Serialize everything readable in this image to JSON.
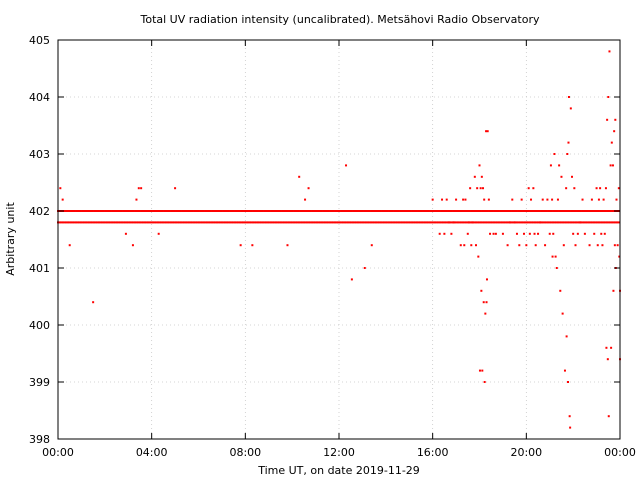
{
  "chart_data": {
    "type": "scatter",
    "title": "Total UV radiation intensity (uncalibrated). Metsähovi Radio Observatory",
    "xlabel": "Time UT, on date 2019-11-29",
    "ylabel": "Arbitrary unit",
    "xlim": [
      0,
      24
    ],
    "ylim": [
      398,
      405
    ],
    "x_ticks": [
      {
        "value": 0,
        "label": "00:00"
      },
      {
        "value": 4,
        "label": "04:00"
      },
      {
        "value": 8,
        "label": "08:00"
      },
      {
        "value": 12,
        "label": "12:00"
      },
      {
        "value": 16,
        "label": "16:00"
      },
      {
        "value": 20,
        "label": "20:00"
      },
      {
        "value": 24,
        "label": "00:00"
      }
    ],
    "y_ticks": [
      398,
      399,
      400,
      401,
      402,
      403,
      404,
      405
    ],
    "grid": true,
    "marker_color": "#ff0000",
    "series": [
      {
        "name": "",
        "points": [
          [
            0.1,
            402.4
          ],
          [
            0.2,
            402.2
          ],
          [
            0.5,
            401.4
          ],
          [
            1.5,
            400.4
          ],
          [
            2.9,
            401.6
          ],
          [
            3.2,
            401.4
          ],
          [
            3.35,
            402.2
          ],
          [
            3.45,
            402.4
          ],
          [
            3.55,
            402.4
          ],
          [
            4.3,
            401.6
          ],
          [
            5.0,
            402.4
          ],
          [
            7.8,
            401.4
          ],
          [
            8.3,
            401.4
          ],
          [
            9.8,
            401.4
          ],
          [
            10.3,
            402.6
          ],
          [
            10.55,
            402.2
          ],
          [
            10.7,
            402.4
          ],
          [
            12.3,
            402.8
          ],
          [
            12.55,
            400.8
          ],
          [
            13.1,
            401.0
          ],
          [
            13.4,
            401.4
          ],
          [
            16.0,
            402.2
          ],
          [
            16.3,
            401.6
          ],
          [
            16.4,
            402.2
          ],
          [
            16.5,
            401.6
          ],
          [
            16.6,
            402.2
          ],
          [
            16.7,
            401.8
          ],
          [
            16.8,
            401.6
          ],
          [
            16.9,
            401.8
          ],
          [
            17.0,
            402.2
          ],
          [
            17.1,
            402.0
          ],
          [
            17.2,
            401.4
          ],
          [
            17.3,
            402.2
          ],
          [
            17.35,
            401.4
          ],
          [
            17.4,
            402.2
          ],
          [
            17.5,
            401.6
          ],
          [
            17.55,
            401.8
          ],
          [
            17.6,
            402.4
          ],
          [
            17.65,
            401.4
          ],
          [
            17.7,
            401.8
          ],
          [
            17.8,
            402.6
          ],
          [
            17.85,
            401.4
          ],
          [
            17.9,
            402.4
          ],
          [
            17.95,
            401.2
          ],
          [
            18.0,
            402.8
          ],
          [
            18.02,
            399.2
          ],
          [
            18.05,
            402.4
          ],
          [
            18.08,
            400.6
          ],
          [
            18.1,
            402.6
          ],
          [
            18.12,
            399.2
          ],
          [
            18.15,
            402.4
          ],
          [
            18.18,
            400.4
          ],
          [
            18.2,
            402.2
          ],
          [
            18.22,
            399.0
          ],
          [
            18.25,
            400.2
          ],
          [
            18.28,
            403.4
          ],
          [
            18.3,
            400.4
          ],
          [
            18.32,
            400.8
          ],
          [
            18.35,
            403.4
          ],
          [
            18.4,
            402.2
          ],
          [
            18.45,
            401.6
          ],
          [
            18.5,
            402.0
          ],
          [
            18.6,
            401.6
          ],
          [
            18.7,
            401.6
          ],
          [
            18.8,
            402.0
          ],
          [
            19.0,
            401.6
          ],
          [
            19.1,
            402.0
          ],
          [
            19.2,
            401.4
          ],
          [
            19.3,
            401.8
          ],
          [
            19.4,
            402.2
          ],
          [
            19.5,
            401.8
          ],
          [
            19.6,
            401.6
          ],
          [
            19.7,
            401.4
          ],
          [
            19.8,
            402.2
          ],
          [
            19.9,
            401.6
          ],
          [
            20.0,
            401.4
          ],
          [
            20.1,
            402.4
          ],
          [
            20.15,
            401.6
          ],
          [
            20.2,
            402.2
          ],
          [
            20.3,
            402.4
          ],
          [
            20.35,
            401.6
          ],
          [
            20.4,
            401.4
          ],
          [
            20.5,
            401.6
          ],
          [
            20.6,
            401.8
          ],
          [
            20.7,
            402.2
          ],
          [
            20.8,
            401.4
          ],
          [
            20.9,
            402.2
          ],
          [
            21.0,
            401.6
          ],
          [
            21.05,
            402.8
          ],
          [
            21.1,
            402.2
          ],
          [
            21.12,
            401.2
          ],
          [
            21.15,
            401.6
          ],
          [
            21.2,
            403.0
          ],
          [
            21.25,
            401.2
          ],
          [
            21.3,
            401.0
          ],
          [
            21.35,
            402.2
          ],
          [
            21.4,
            402.8
          ],
          [
            21.45,
            400.6
          ],
          [
            21.5,
            402.6
          ],
          [
            21.55,
            400.2
          ],
          [
            21.6,
            401.4
          ],
          [
            21.65,
            399.2
          ],
          [
            21.7,
            402.4
          ],
          [
            21.72,
            399.8
          ],
          [
            21.75,
            403.0
          ],
          [
            21.78,
            399.0
          ],
          [
            21.8,
            403.2
          ],
          [
            21.82,
            404.0
          ],
          [
            21.85,
            398.4
          ],
          [
            21.87,
            398.2
          ],
          [
            21.9,
            403.8
          ],
          [
            21.95,
            402.6
          ],
          [
            22.0,
            401.6
          ],
          [
            22.05,
            402.4
          ],
          [
            22.1,
            401.4
          ],
          [
            22.2,
            401.6
          ],
          [
            22.3,
            401.8
          ],
          [
            22.4,
            402.2
          ],
          [
            22.5,
            401.6
          ],
          [
            22.6,
            402.0
          ],
          [
            22.7,
            401.4
          ],
          [
            22.8,
            402.2
          ],
          [
            22.9,
            401.6
          ],
          [
            23.0,
            402.4
          ],
          [
            23.05,
            401.4
          ],
          [
            23.1,
            402.2
          ],
          [
            23.15,
            402.4
          ],
          [
            23.2,
            401.6
          ],
          [
            23.25,
            401.4
          ],
          [
            23.3,
            402.2
          ],
          [
            23.35,
            401.6
          ],
          [
            23.4,
            402.4
          ],
          [
            23.42,
            399.6
          ],
          [
            23.45,
            403.6
          ],
          [
            23.48,
            399.4
          ],
          [
            23.5,
            404.0
          ],
          [
            23.52,
            398.4
          ],
          [
            23.55,
            404.8
          ],
          [
            23.6,
            402.8
          ],
          [
            23.62,
            399.6
          ],
          [
            23.65,
            403.2
          ],
          [
            23.7,
            402.8
          ],
          [
            23.72,
            400.6
          ],
          [
            23.75,
            403.4
          ],
          [
            23.78,
            401.4
          ],
          [
            23.8,
            403.6
          ],
          [
            23.82,
            401.0
          ],
          [
            23.85,
            402.2
          ],
          [
            23.9,
            401.4
          ],
          [
            23.92,
            402.0
          ],
          [
            23.95,
            402.4
          ],
          [
            23.97,
            401.2
          ],
          [
            24.0,
            400.6
          ],
          [
            24.0,
            399.4
          ]
        ]
      }
    ]
  }
}
